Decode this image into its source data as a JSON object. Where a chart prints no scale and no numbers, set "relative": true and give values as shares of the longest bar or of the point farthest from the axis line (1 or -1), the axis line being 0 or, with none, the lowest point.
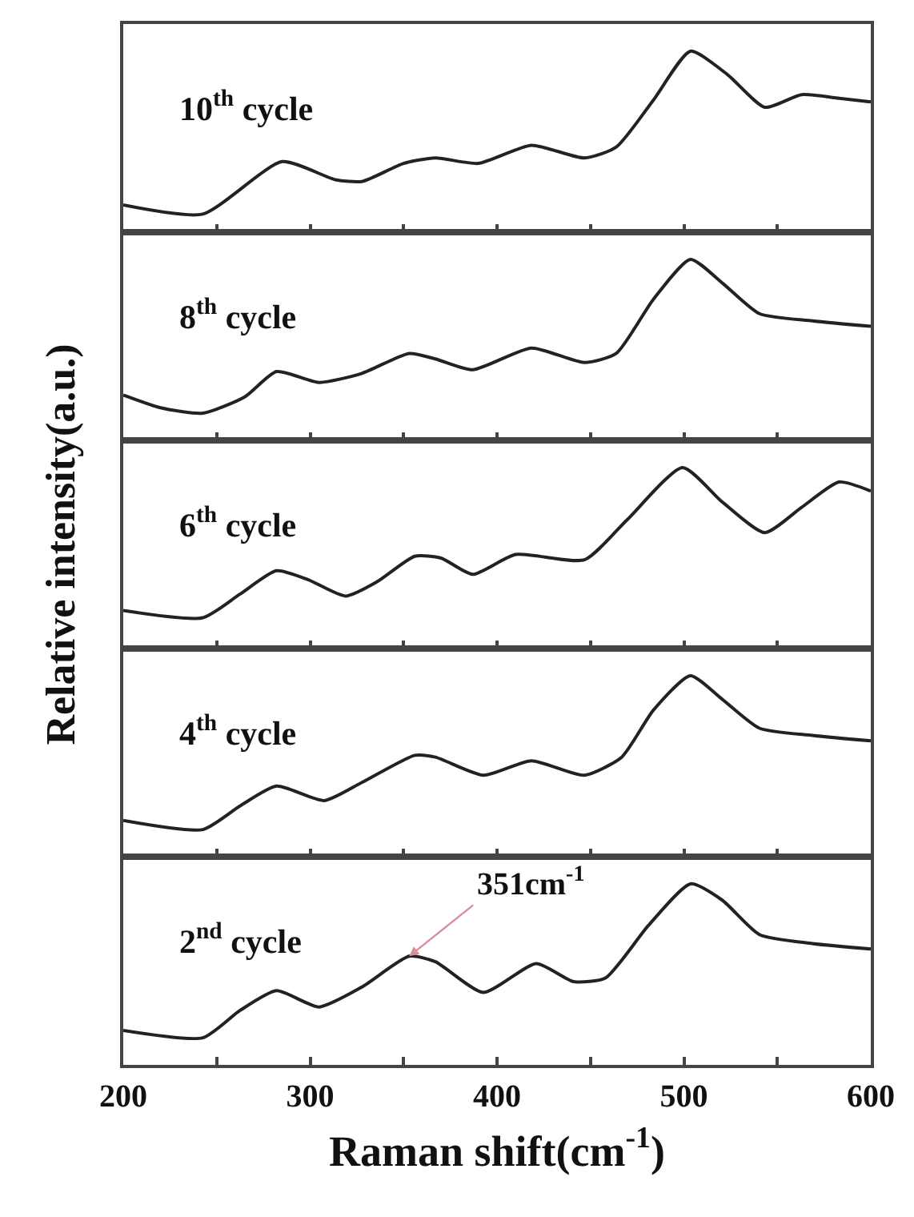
{
  "chart_data": [
    {
      "type": "line",
      "relative": true,
      "xlim": [
        200,
        600
      ],
      "xticks": [
        200,
        {
          "value": 250,
          "label": null
        },
        300,
        {
          "value": 350,
          "label": null
        },
        400,
        {
          "value": 450,
          "label": null
        },
        500,
        {
          "value": 550,
          "label": null
        },
        600
      ],
      "tick_labels": false,
      "grid": false,
      "annotations": [
        "10$^{th}$ cycle"
      ],
      "x": [
        200,
        242.6,
        285,
        313.5,
        327.7,
        350,
        367,
        390,
        418.4,
        446.8,
        463.8,
        483.7,
        503.5,
        523.4,
        543.3,
        563,
        583,
        600
      ],
      "series": [
        {
          "color": "#222222",
          "values": [
            0.15,
            0.1,
            0.39,
            0.29,
            0.28,
            0.38,
            0.41,
            0.38,
            0.48,
            0.41,
            0.47,
            0.73,
            1.0,
            0.87,
            0.69,
            0.76,
            0.74,
            0.72
          ]
        }
      ]
    },
    {
      "type": "line",
      "relative": true,
      "xlim": [
        200,
        600
      ],
      "xticks": [
        200,
        {
          "value": 250,
          "label": null
        },
        300,
        {
          "value": 350,
          "label": null
        },
        400,
        {
          "value": 450,
          "label": null
        },
        500,
        {
          "value": 550,
          "label": null
        },
        600
      ],
      "tick_labels": false,
      "grid": false,
      "annotations": [
        "8$^{th}$ cycle"
      ],
      "x": [
        200,
        219.9,
        242.6,
        265,
        282,
        304.7,
        327.7,
        353,
        367,
        387,
        418.4,
        446.8,
        463.8,
        483.7,
        503.5,
        520.5,
        540.4,
        568.8,
        600
      ],
      "series": [
        {
          "color": "#222222",
          "values": [
            0.25,
            0.18,
            0.15,
            0.24,
            0.38,
            0.32,
            0.37,
            0.48,
            0.45,
            0.39,
            0.51,
            0.43,
            0.48,
            0.78,
            1.0,
            0.87,
            0.7,
            0.66,
            0.63
          ]
        }
      ]
    },
    {
      "type": "line",
      "relative": true,
      "xlim": [
        200,
        600
      ],
      "xticks": [
        200,
        {
          "value": 250,
          "label": null
        },
        300,
        {
          "value": 350,
          "label": null
        },
        400,
        {
          "value": 450,
          "label": null
        },
        500,
        {
          "value": 550,
          "label": null
        },
        600
      ],
      "tick_labels": false,
      "grid": false,
      "ylabel": "Relative intensity(a.u.)",
      "annotations": [
        "6$^{th}$ cycle"
      ],
      "x": [
        200,
        242.6,
        262.4,
        282,
        299,
        319,
        336,
        356,
        370,
        387,
        409.9,
        446.8,
        469.5,
        499.3,
        520.5,
        543.3,
        563,
        583,
        600
      ],
      "series": [
        {
          "color": "#222222",
          "values": [
            0.21,
            0.17,
            0.3,
            0.43,
            0.38,
            0.29,
            0.37,
            0.51,
            0.5,
            0.41,
            0.52,
            0.49,
            0.71,
            1.0,
            0.81,
            0.64,
            0.78,
            0.92,
            0.87
          ]
        }
      ]
    },
    {
      "type": "line",
      "relative": true,
      "xlim": [
        200,
        600
      ],
      "xticks": [
        200,
        {
          "value": 250,
          "label": null
        },
        300,
        {
          "value": 350,
          "label": null
        },
        400,
        {
          "value": 450,
          "label": null
        },
        500,
        {
          "value": 550,
          "label": null
        },
        600
      ],
      "tick_labels": false,
      "grid": false,
      "annotations": [
        "4$^{th}$ cycle"
      ],
      "x": [
        200,
        242.6,
        262.4,
        282,
        307.6,
        327.7,
        356,
        367,
        392.6,
        418.4,
        446.8,
        466.7,
        483.7,
        503.5,
        520.5,
        540.4,
        568.8,
        600
      ],
      "series": [
        {
          "color": "#222222",
          "values": [
            0.2,
            0.15,
            0.28,
            0.39,
            0.31,
            0.41,
            0.56,
            0.55,
            0.45,
            0.53,
            0.45,
            0.55,
            0.81,
            1.0,
            0.87,
            0.71,
            0.67,
            0.64
          ]
        }
      ]
    },
    {
      "type": "line",
      "relative": true,
      "xlim": [
        200,
        600
      ],
      "xticks": [
        200,
        {
          "value": 250,
          "label": null
        },
        300,
        {
          "value": 350,
          "label": null
        },
        400,
        {
          "value": 450,
          "label": null
        },
        500,
        {
          "value": 550,
          "label": null
        },
        600
      ],
      "tick_labels": "x",
      "grid": false,
      "xlabel": "Raman shift(cm$^{-1}$)",
      "annotations": [
        "2$^{nd}$ cycle",
        {
          "text": "351cm$^{-1}$",
          "x": 353,
          "y": 0.6
        }
      ],
      "x": [
        200,
        242.6,
        262.4,
        282,
        304.7,
        327.7,
        353,
        367,
        392.6,
        421,
        441,
        458,
        481,
        503.5,
        520.5,
        540.4,
        568.8,
        600
      ],
      "series": [
        {
          "color": "#222222",
          "values": [
            0.19,
            0.15,
            0.3,
            0.41,
            0.32,
            0.43,
            0.6,
            0.57,
            0.4,
            0.56,
            0.46,
            0.48,
            0.77,
            1.0,
            0.91,
            0.72,
            0.67,
            0.64
          ]
        }
      ]
    }
  ]
}
